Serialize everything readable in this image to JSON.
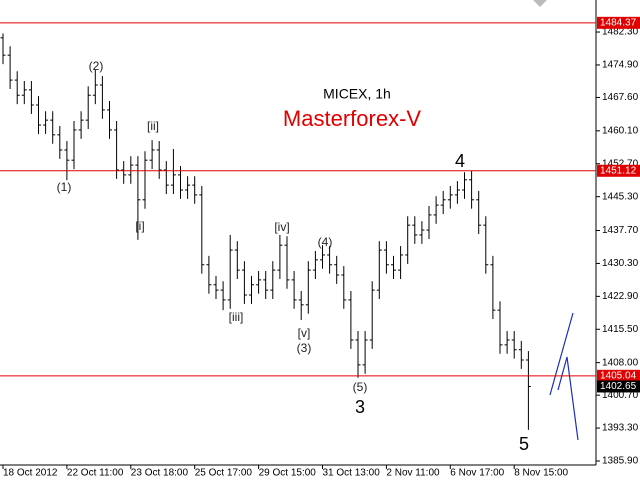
{
  "chart_data": {
    "type": "ohlc",
    "title": "MICEX, 1h",
    "subtitle": "Masterforex-V",
    "color": "#000000",
    "level_color": "#e00000",
    "categories": [
      "18 Oct 2012",
      null,
      null,
      null,
      null,
      null,
      null,
      null,
      null,
      "22 Oct 11:00",
      null,
      null,
      null,
      null,
      null,
      null,
      null,
      null,
      "23 Oct 18:00",
      null,
      null,
      null,
      null,
      null,
      null,
      null,
      null,
      "25 Oct 17:00",
      null,
      null,
      null,
      null,
      null,
      null,
      null,
      null,
      "29 Oct 15:00",
      null,
      null,
      null,
      null,
      null,
      null,
      null,
      null,
      "31 Oct 13:00",
      null,
      null,
      null,
      null,
      null,
      null,
      null,
      null,
      "2 Nov 11:00",
      null,
      null,
      null,
      null,
      null,
      null,
      null,
      null,
      "6 Nov 17:00",
      null,
      null,
      null,
      null,
      null,
      null,
      null,
      null,
      "8 Nov 15:00",
      null,
      null
    ],
    "open": [
      1481.0,
      1477.1,
      1471.5,
      1468.1,
      1469.3,
      1465.9,
      1461.4,
      1462.5,
      1459.2,
      1455.8,
      1453.5,
      1460.3,
      1462.5,
      1468.1,
      1470.4,
      1464.8,
      1460.3,
      1451.3,
      1450.2,
      1452.4,
      1444.6,
      1453.5,
      1455.8,
      1451.3,
      1447.9,
      1450.2,
      1446.8,
      1447.9,
      1445.7,
      1430.0,
      1425.5,
      1424.3,
      1422.1,
      1433.3,
      1428.8,
      1423.2,
      1425.5,
      1426.6,
      1424.3,
      1428.8,
      1434.4,
      1426.6,
      1422.1,
      1421.0,
      1428.8,
      1431.1,
      1432.2,
      1430.0,
      1427.7,
      1422.1,
      1413.1,
      1407.5,
      1413.1,
      1424.3,
      1433.3,
      1430.0,
      1428.8,
      1432.2,
      1438.9,
      1436.7,
      1437.8,
      1441.2,
      1443.4,
      1444.6,
      1445.7,
      1446.8,
      1449.1,
      1444.6,
      1438.9,
      1430.0,
      1419.8,
      1412.0,
      1413.1,
      1410.9,
      1408.6
    ],
    "high": [
      1482.0,
      1479.1,
      1473.5,
      1471.3,
      1471.3,
      1467.9,
      1464.5,
      1464.5,
      1461.2,
      1457.8,
      1462.3,
      1464.5,
      1470.1,
      1473.8,
      1472.4,
      1466.8,
      1462.3,
      1453.3,
      1454.4,
      1454.4,
      1455.5,
      1458.0,
      1457.8,
      1453.3,
      1456.0,
      1452.2,
      1449.9,
      1449.9,
      1447.7,
      1432.0,
      1427.5,
      1426.3,
      1436.7,
      1435.3,
      1430.8,
      1427.5,
      1428.6,
      1428.6,
      1430.8,
      1436.7,
      1436.4,
      1428.6,
      1424.1,
      1430.8,
      1433.1,
      1434.4,
      1434.2,
      1432.0,
      1429.7,
      1424.1,
      1415.1,
      1415.1,
      1426.3,
      1435.3,
      1435.3,
      1432.0,
      1434.2,
      1440.9,
      1440.9,
      1439.8,
      1443.2,
      1445.4,
      1446.6,
      1447.7,
      1448.8,
      1450.8,
      1451.1,
      1446.6,
      1440.9,
      1432.0,
      1421.8,
      1415.1,
      1415.1,
      1412.9,
      1410.6
    ],
    "low": [
      1475.1,
      1469.5,
      1466.1,
      1466.1,
      1463.9,
      1459.4,
      1459.4,
      1457.2,
      1453.8,
      1449.0,
      1451.5,
      1458.3,
      1460.5,
      1466.1,
      1462.8,
      1458.3,
      1449.3,
      1448.2,
      1448.2,
      1435.6,
      1442.6,
      1451.5,
      1449.3,
      1445.9,
      1445.9,
      1444.8,
      1444.8,
      1443.7,
      1428.0,
      1423.5,
      1422.3,
      1419.8,
      1420.1,
      1426.8,
      1421.2,
      1421.2,
      1423.5,
      1422.3,
      1422.3,
      1426.8,
      1424.6,
      1420.1,
      1417.6,
      1419.0,
      1426.8,
      1429.1,
      1428.0,
      1425.7,
      1420.1,
      1411.1,
      1404.6,
      1405.5,
      1411.1,
      1422.3,
      1428.0,
      1426.8,
      1426.8,
      1430.2,
      1434.7,
      1434.7,
      1435.8,
      1439.2,
      1441.4,
      1442.6,
      1443.7,
      1444.8,
      1442.6,
      1436.9,
      1428.0,
      1417.8,
      1410.0,
      1410.0,
      1408.9,
      1406.6,
      1392.9
    ],
    "close": [
      1477.1,
      1471.5,
      1468.1,
      1469.3,
      1465.9,
      1461.4,
      1462.5,
      1459.2,
      1455.8,
      1453.5,
      1460.3,
      1462.5,
      1468.1,
      1470.4,
      1464.8,
      1460.3,
      1451.3,
      1450.2,
      1452.4,
      1444.6,
      1453.5,
      1455.8,
      1451.3,
      1447.9,
      1450.2,
      1446.8,
      1447.9,
      1445.7,
      1430.0,
      1425.5,
      1424.3,
      1422.1,
      1433.3,
      1428.8,
      1423.2,
      1425.5,
      1426.6,
      1424.3,
      1428.8,
      1434.4,
      1426.6,
      1422.1,
      1421.0,
      1428.8,
      1431.1,
      1432.2,
      1430.0,
      1427.7,
      1422.1,
      1413.1,
      1407.5,
      1413.1,
      1424.3,
      1433.3,
      1430.0,
      1428.8,
      1432.2,
      1438.9,
      1436.7,
      1437.8,
      1441.2,
      1443.4,
      1444.6,
      1445.7,
      1446.8,
      1449.1,
      1444.6,
      1438.9,
      1430.0,
      1419.8,
      1412.0,
      1413.1,
      1410.9,
      1408.6,
      1402.65
    ],
    "ylim": [
      1385.0,
      1489.5
    ],
    "yticks": [
      {
        "value": 1482.3,
        "label": "1482.30"
      },
      {
        "value": 1474.9,
        "label": "1474.90"
      },
      {
        "value": 1467.6,
        "label": "1467.60"
      },
      {
        "value": 1460.1,
        "label": "1460.10"
      },
      {
        "value": 1452.7,
        "label": "1452.70"
      },
      {
        "value": 1445.3,
        "label": "1445.30"
      },
      {
        "value": 1437.7,
        "label": "1437.70"
      },
      {
        "value": 1430.3,
        "label": "1430.30"
      },
      {
        "value": 1422.9,
        "label": "1422.90"
      },
      {
        "value": 1415.5,
        "label": "1415.50"
      },
      {
        "value": 1408.0,
        "label": "1408.00"
      },
      {
        "value": 1400.7,
        "label": "1400.70"
      },
      {
        "value": 1393.3,
        "label": "1393.30"
      },
      {
        "value": 1385.9,
        "label": "1385.90"
      }
    ],
    "levels": [
      1484.37,
      1451.12,
      1405.04
    ],
    "annotations": [
      "(1)",
      "(2)",
      "[i]",
      "[ii]",
      "[iii]",
      "[iv]",
      "(4)",
      "[v]",
      "(3)",
      "(5)",
      "3",
      "4",
      "5"
    ]
  }
}
